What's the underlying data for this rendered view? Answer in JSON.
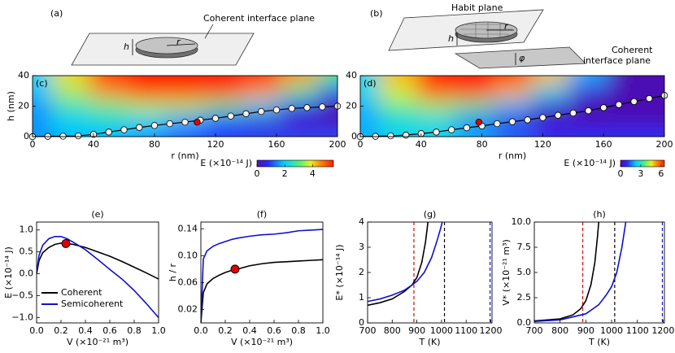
{
  "schematics": [
    {
      "tag": "(a)",
      "labels": [
        "Coherent interface plane",
        "h",
        "r"
      ]
    },
    {
      "tag": "(b)",
      "labels": [
        "Habit plane",
        "h",
        "r",
        "φ",
        "Coherent",
        "interface plane"
      ]
    }
  ],
  "chart_data": [
    {
      "type": "heatmap",
      "panel_label": "(c)",
      "x_label": "r (nm)",
      "y_label": "h (nm)",
      "colorbar_label": "E (×10⁻¹⁴ J)",
      "x": [
        0,
        25,
        50,
        75,
        100,
        125,
        150,
        175,
        200
      ],
      "y": [
        0,
        10,
        20,
        30,
        40
      ],
      "z": [
        [
          1.5,
          1.8,
          1.8,
          1.5,
          1.2,
          1.0,
          1.0,
          1.0,
          1.0
        ],
        [
          1.5,
          2.0,
          2.2,
          2.0,
          1.5,
          0.8,
          0.2,
          0,
          0
        ],
        [
          1.5,
          2.5,
          3,
          3.5,
          3.5,
          3,
          2,
          0.8,
          0
        ],
        [
          1.8,
          3.5,
          4.5,
          5.5,
          5.5,
          5.5,
          4.5,
          3,
          1
        ],
        [
          2.0,
          4.0,
          5.5,
          5.5,
          5.5,
          5.5,
          5.5,
          4.5,
          3
        ]
      ],
      "zlim": [
        0,
        5.5
      ],
      "zticks": [
        0,
        2,
        4
      ],
      "xlim": [
        0,
        200
      ],
      "xticks": [
        0,
        40,
        80,
        120,
        160,
        200
      ],
      "ylim": [
        0,
        40
      ],
      "yticks": [
        0,
        20,
        40
      ],
      "curve": {
        "x": [
          0,
          10,
          20,
          30,
          40,
          50,
          60,
          70,
          80,
          90,
          100,
          110,
          120,
          130,
          140,
          150,
          160,
          170,
          180,
          190,
          200
        ],
        "y": [
          0,
          0.2,
          0.3,
          0.5,
          1.5,
          3,
          4.5,
          6,
          7.3,
          8.5,
          9.5,
          10.8,
          12,
          13.5,
          15,
          16.5,
          17.5,
          18.5,
          19,
          19.5,
          20
        ]
      },
      "highlight": {
        "x": 108,
        "y": 9.5
      }
    },
    {
      "type": "heatmap",
      "panel_label": "(d)",
      "x_label": "r (nm)",
      "colorbar_label": "E (×10⁻¹⁴ J)",
      "x": [
        0,
        25,
        50,
        75,
        100,
        125,
        150,
        175,
        200
      ],
      "y": [
        0,
        10,
        20,
        30,
        40
      ],
      "z": [
        [
          2,
          2.5,
          2.5,
          2,
          1.5,
          1,
          1,
          1,
          1
        ],
        [
          2,
          2.5,
          2.5,
          1.5,
          0.5,
          0,
          0,
          0,
          0
        ],
        [
          2,
          3.5,
          4,
          3.5,
          2,
          0.5,
          0,
          0,
          0
        ],
        [
          2.5,
          4.5,
          6,
          6.5,
          5,
          2.5,
          0.5,
          0,
          0
        ],
        [
          2.5,
          5,
          6.5,
          6.5,
          6.5,
          5,
          2,
          0,
          0
        ]
      ],
      "zlim": [
        0,
        6.5
      ],
      "zticks": [
        0,
        3,
        6
      ],
      "xlim": [
        0,
        200
      ],
      "xticks": [
        0,
        40,
        80,
        120,
        160,
        200
      ],
      "ylim": [
        0,
        40
      ],
      "yticks": [
        0,
        20,
        40
      ],
      "curve": {
        "x": [
          0,
          10,
          20,
          30,
          40,
          50,
          60,
          70,
          80,
          90,
          100,
          110,
          120,
          130,
          140,
          150,
          160,
          170,
          180,
          190,
          200
        ],
        "y": [
          0,
          0.2,
          0.5,
          1,
          2,
          3,
          4.5,
          5.8,
          7,
          8.5,
          9.8,
          11,
          12.5,
          14,
          15.5,
          17,
          19,
          21,
          23,
          25,
          27
        ]
      },
      "highlight": {
        "x": 78,
        "y": 9.5
      }
    },
    {
      "type": "line",
      "title": "(e)",
      "x_label": "V (×10⁻²¹ m³)",
      "y_label": "E (×10⁻¹⁴ J)",
      "xlim": [
        0,
        1
      ],
      "xticks": [
        {
          "value": 0,
          "label": "0.0"
        },
        0.2,
        0.4,
        0.6,
        0.8,
        {
          "value": 1,
          "label": "1.0"
        }
      ],
      "ylim": [
        -1.12,
        1.18
      ],
      "yticks": [
        {
          "value": -1,
          "label": "−1.0"
        },
        {
          "value": -0.5,
          "label": "−0.5"
        },
        {
          "value": 0,
          "label": "0.0"
        },
        0.5,
        {
          "value": 1,
          "label": "1.0"
        }
      ],
      "legend": "lower left",
      "series": [
        {
          "name": "Coherent",
          "color": "#000000",
          "x": [
            0,
            0.02,
            0.05,
            0.1,
            0.15,
            0.2,
            0.25,
            0.3,
            0.4,
            0.5,
            0.6,
            0.7,
            0.8,
            0.9,
            1.0
          ],
          "values": [
            0,
            0.3,
            0.48,
            0.6,
            0.67,
            0.7,
            0.69,
            0.67,
            0.6,
            0.5,
            0.4,
            0.28,
            0.15,
            0.02,
            -0.12
          ]
        },
        {
          "name": "Semicoherent",
          "color": "#1010d0",
          "x": [
            0,
            0.02,
            0.05,
            0.1,
            0.15,
            0.2,
            0.25,
            0.3,
            0.4,
            0.5,
            0.6,
            0.7,
            0.8,
            0.9,
            1.0
          ],
          "values": [
            0,
            0.42,
            0.65,
            0.8,
            0.85,
            0.85,
            0.8,
            0.72,
            0.55,
            0.33,
            0.1,
            -0.12,
            -0.38,
            -0.68,
            -1.0
          ]
        }
      ],
      "highlight": {
        "x": 0.24,
        "y": 0.69
      }
    },
    {
      "type": "line",
      "title": "(f)",
      "x_label": "V (×10⁻²¹ m³)",
      "y_label": "h / r",
      "xlim": [
        0,
        1
      ],
      "xticks": [
        {
          "value": 0,
          "label": "0.0"
        },
        0.2,
        0.4,
        0.6,
        0.8,
        {
          "value": 1,
          "label": "1.0"
        }
      ],
      "ylim": [
        0,
        0.15
      ],
      "yticks": [
        0.02,
        0.06,
        {
          "value": 0.1,
          "label": "0.10"
        },
        0.14
      ],
      "series": [
        {
          "color": "#000000",
          "x": [
            0,
            0.02,
            0.05,
            0.1,
            0.15,
            0.2,
            0.25,
            0.3,
            0.4,
            0.5,
            0.6,
            0.7,
            0.8,
            0.9,
            1.0
          ],
          "values": [
            0,
            0.045,
            0.058,
            0.066,
            0.071,
            0.075,
            0.078,
            0.08,
            0.085,
            0.088,
            0.09,
            0.091,
            0.092,
            0.093,
            0.094
          ]
        },
        {
          "color": "#1010d0",
          "x": [
            0,
            0.02,
            0.05,
            0.1,
            0.15,
            0.2,
            0.25,
            0.3,
            0.4,
            0.5,
            0.6,
            0.7,
            0.8,
            0.9,
            1.0
          ],
          "values": [
            0,
            0.095,
            0.107,
            0.114,
            0.118,
            0.121,
            0.124,
            0.126,
            0.129,
            0.131,
            0.132,
            0.134,
            0.137,
            0.138,
            0.139
          ]
        }
      ],
      "highlight": {
        "x": 0.28,
        "y": 0.08
      }
    },
    {
      "type": "line",
      "title": "(g)",
      "x_label": "T (K)",
      "y_label": "E* (×10⁻¹⁴ J)",
      "xlim": [
        700,
        1205
      ],
      "xticks": [
        700,
        800,
        900,
        1000,
        1100,
        1200
      ],
      "ylim": [
        0,
        4
      ],
      "yticks": [
        0,
        1,
        2,
        3,
        4
      ],
      "series": [
        {
          "color": "#000000",
          "x": [
            700,
            750,
            800,
            850,
            880,
            900,
            920,
            935,
            945
          ],
          "values": [
            0.7,
            0.8,
            0.95,
            1.25,
            1.5,
            1.8,
            2.4,
            3.2,
            4.0
          ]
        },
        {
          "color": "#1010d0",
          "x": [
            700,
            750,
            800,
            850,
            880,
            900,
            930,
            960,
            980,
            995,
            1003
          ],
          "values": [
            0.85,
            0.95,
            1.1,
            1.3,
            1.5,
            1.65,
            2.0,
            2.6,
            3.2,
            3.7,
            4.0
          ]
        }
      ],
      "vlines": [
        {
          "x": 888,
          "color": "#e00000"
        },
        {
          "x": 1012,
          "color": "#000000"
        },
        {
          "x": 1197,
          "color": "#1010d0"
        }
      ]
    },
    {
      "type": "line",
      "title": "(h)",
      "x_label": "T (K)",
      "y_label": "V* (×10⁻²¹ m³)",
      "xlim": [
        700,
        1205
      ],
      "xticks": [
        700,
        800,
        900,
        1000,
        1100,
        1200
      ],
      "ylim": [
        0,
        10
      ],
      "yticks": [
        {
          "value": 0,
          "label": "0.0"
        },
        2.5,
        {
          "value": 5,
          "label": "5.0"
        },
        7.5,
        {
          "value": 10,
          "label": "10.0"
        }
      ],
      "series": [
        {
          "color": "#000000",
          "x": [
            700,
            800,
            850,
            880,
            900,
            920,
            935,
            945,
            950
          ],
          "values": [
            0.2,
            0.4,
            0.8,
            1.4,
            2.2,
            3.8,
            6,
            8.5,
            10
          ]
        },
        {
          "color": "#1010d0",
          "x": [
            700,
            800,
            900,
            950,
            980,
            1000,
            1020,
            1040,
            1055
          ],
          "values": [
            0.15,
            0.3,
            0.9,
            1.8,
            2.8,
            3.6,
            5,
            7.5,
            10
          ]
        }
      ],
      "vlines": [
        {
          "x": 888,
          "color": "#e00000"
        },
        {
          "x": 1012,
          "color": "#000000"
        },
        {
          "x": 1197,
          "color": "#1010d0"
        }
      ]
    }
  ]
}
